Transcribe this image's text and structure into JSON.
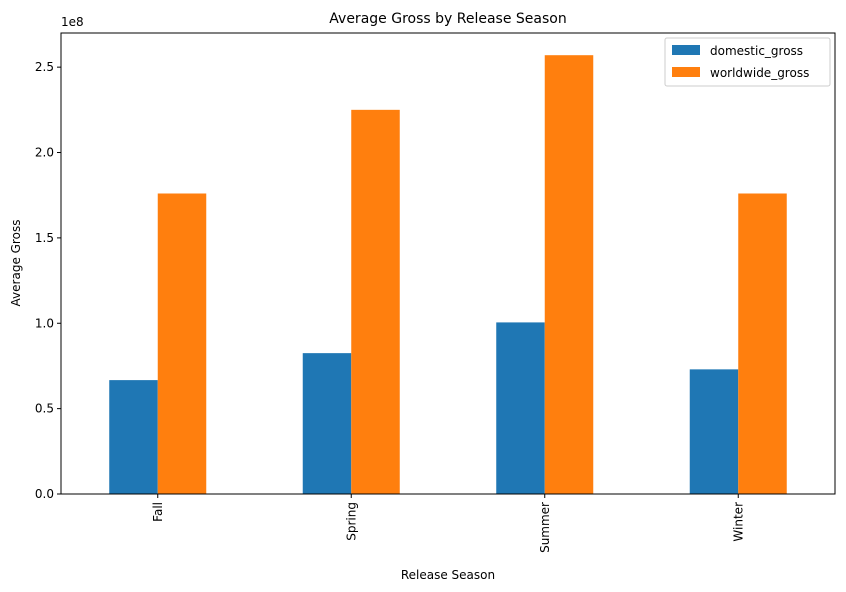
{
  "chart_data": {
    "type": "bar",
    "title": "Average Gross by Release Season",
    "xlabel": "Release Season",
    "ylabel": "Average Gross",
    "y_scale_label": "1e8",
    "categories": [
      "Fall",
      "Spring",
      "Summer",
      "Winter"
    ],
    "series": [
      {
        "name": "domestic_gross",
        "color": "#1f77b4",
        "values": [
          66700000,
          82500000,
          100500000,
          73000000
        ]
      },
      {
        "name": "worldwide_gross",
        "color": "#ff7f0e",
        "values": [
          176000000,
          225000000,
          257000000,
          176000000
        ]
      }
    ],
    "yticks": [
      {
        "value": 0,
        "label": "0.0"
      },
      {
        "value": 50000000,
        "label": "0.5"
      },
      {
        "value": 100000000,
        "label": "1.0"
      },
      {
        "value": 150000000,
        "label": "1.5"
      },
      {
        "value": 200000000,
        "label": "2.0"
      },
      {
        "value": 250000000,
        "label": "2.5"
      }
    ],
    "ylim": [
      0,
      270000000
    ],
    "legend": "top-right",
    "grid": false
  }
}
